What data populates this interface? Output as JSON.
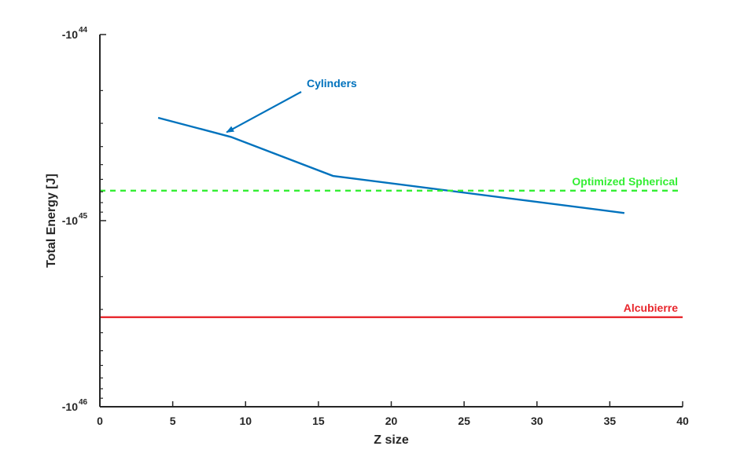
{
  "chart_data": {
    "type": "line",
    "xlabel": "Z size",
    "ylabel": "Total Energy [J]",
    "xlim": [
      0,
      40
    ],
    "ylim": [
      -1e+44,
      -1e+46
    ],
    "y_scale": "log (negative values, magnitude increasing downward)",
    "x_ticks": [
      "0",
      "5",
      "10",
      "15",
      "20",
      "25",
      "30",
      "35",
      "40"
    ],
    "y_ticks": [
      {
        "base": "-10",
        "exp": "44"
      },
      {
        "base": "-10",
        "exp": "45"
      },
      {
        "base": "-10",
        "exp": "46"
      }
    ],
    "grid": false,
    "series": [
      {
        "name": "Cylinders",
        "color": "#0072BD",
        "style": "solid",
        "x": [
          4,
          9,
          16,
          36
        ],
        "y": [
          -2.8e+44,
          -3.55e+44,
          -5.75e+44,
          -9.1e+44
        ]
      },
      {
        "name": "Optimized Spherical",
        "color": "#33EE33",
        "style": "dashed",
        "x": [
          0,
          40
        ],
        "y": [
          -6.9e+44,
          -6.9e+44
        ]
      },
      {
        "name": "Alcubierre",
        "color": "#E8262C",
        "style": "solid",
        "x": [
          0,
          40
        ],
        "y": [
          -3.3e+45,
          -3.3e+45
        ]
      }
    ],
    "annotations": [
      {
        "text": "Cylinders",
        "color": "#0072BD",
        "arrow_to": {
          "x": 8.7,
          "y": -3.35e+44
        }
      },
      {
        "text": "Optimized Spherical",
        "color": "#33EE33"
      },
      {
        "text": "Alcubierre",
        "color": "#E8262C"
      }
    ]
  }
}
